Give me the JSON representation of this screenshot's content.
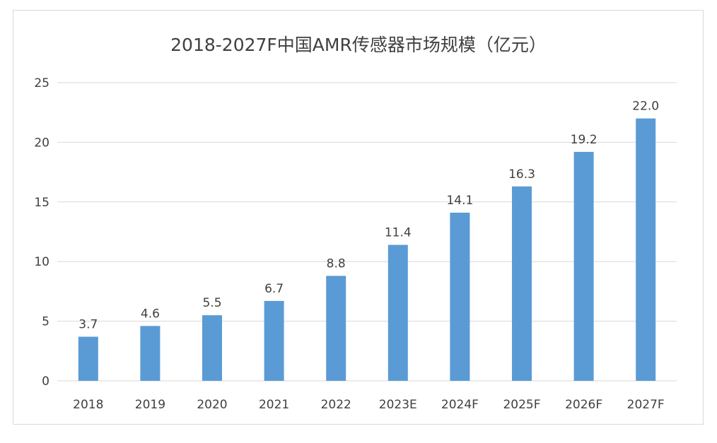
{
  "chart_data": {
    "type": "bar",
    "title": "2018-2027F中国AMR传感器市场规模（亿元）",
    "xlabel": "",
    "ylabel": "",
    "categories": [
      "2018",
      "2019",
      "2020",
      "2021",
      "2022",
      "2023E",
      "2024F",
      "2025F",
      "2026F",
      "2027F"
    ],
    "values": [
      3.7,
      4.6,
      5.5,
      6.7,
      8.8,
      11.4,
      14.1,
      16.3,
      19.2,
      22.0
    ],
    "value_labels": [
      "3.7",
      "4.6",
      "5.5",
      "6.7",
      "8.8",
      "11.4",
      "14.1",
      "16.3",
      "19.2",
      "22.0"
    ],
    "ylim": [
      0,
      25
    ],
    "yticks": [
      0,
      5,
      10,
      15,
      20,
      25
    ],
    "grid": true,
    "legend": "none",
    "bar_color": "#5b9bd5"
  }
}
